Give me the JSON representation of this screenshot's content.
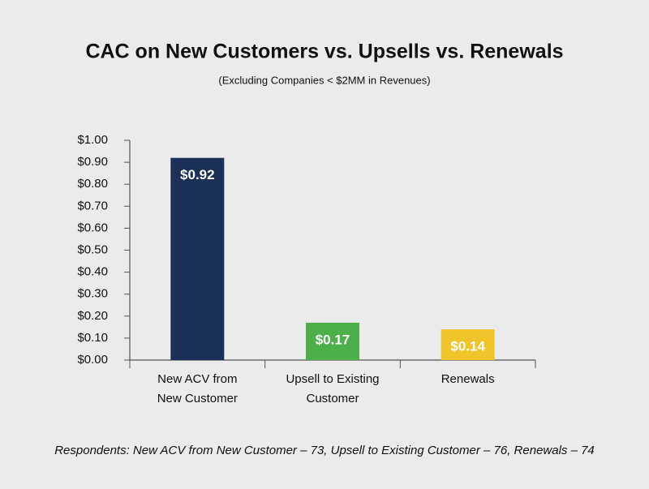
{
  "chart_data": {
    "type": "bar",
    "title": "CAC on New Customers vs. Upsells vs. Renewals",
    "subtitle": "(Excluding Companies < $2MM in Revenues)",
    "categories": [
      "New ACV from New Customer",
      "Upsell to Existing Customer",
      "Renewals"
    ],
    "values": [
      0.92,
      0.17,
      0.14
    ],
    "value_labels": [
      "$0.92",
      "$0.17",
      "$0.14"
    ],
    "colors": [
      "#1b2f57",
      "#4caf4a",
      "#f0c52c"
    ],
    "ylim": [
      0,
      1
    ],
    "yticks": [
      {
        "value": 0,
        "label": "$0.00"
      },
      {
        "value": 0.1,
        "label": "$0.10"
      },
      {
        "value": 0.2,
        "label": "$0.20"
      },
      {
        "value": 0.3,
        "label": "$0.30"
      },
      {
        "value": 0.4,
        "label": "$0.40"
      },
      {
        "value": 0.5,
        "label": "$0.50"
      },
      {
        "value": 0.6,
        "label": "$0.60"
      },
      {
        "value": 0.7,
        "label": "$0.70"
      },
      {
        "value": 0.8,
        "label": "$0.80"
      },
      {
        "value": 0.9,
        "label": "$0.90"
      },
      {
        "value": 1,
        "label": "$1.00"
      }
    ],
    "grid": false,
    "footnote": "Respondents: New ACV from New Customer – 73, Upsell to Existing Customer – 76, Renewals – 74"
  }
}
